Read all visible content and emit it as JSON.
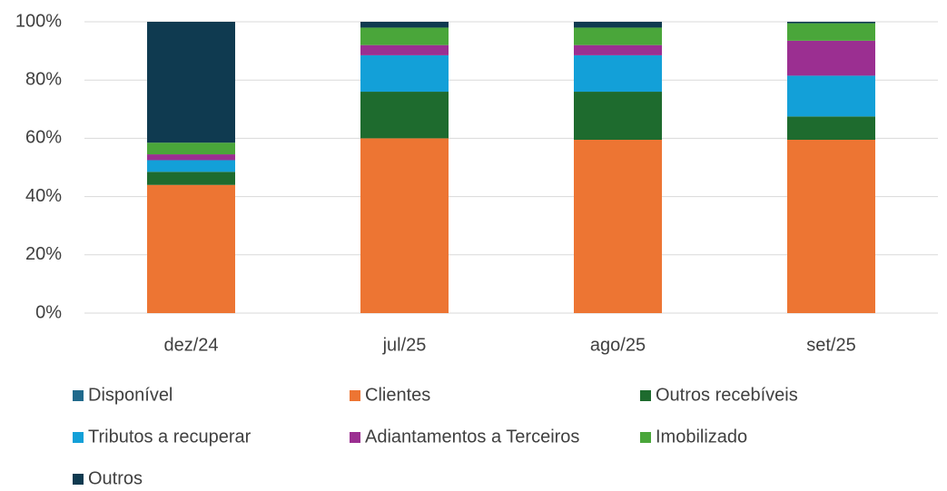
{
  "chart_data": {
    "type": "stacked_bar",
    "categories": [
      "dez/24",
      "jul/25",
      "ago/25",
      "set/25"
    ],
    "series": [
      {
        "name": "Disponível",
        "color": "#206a8c",
        "values": [
          0,
          0,
          0,
          0
        ]
      },
      {
        "name": "Clientes",
        "color": "#ed7533",
        "values": [
          44,
          60,
          59.5,
          59.5
        ]
      },
      {
        "name": "Outros recebíveis",
        "color": "#1e6b2e",
        "values": [
          4.5,
          16,
          16.5,
          8
        ]
      },
      {
        "name": "Tributos a recuperar",
        "color": "#13a0d8",
        "values": [
          4,
          12.5,
          12.5,
          14
        ]
      },
      {
        "name": "Adiantamentos a Terceiros",
        "color": "#9b2f91",
        "values": [
          2,
          3.5,
          3.5,
          12
        ]
      },
      {
        "name": "Imobilizado",
        "color": "#4aa63a",
        "values": [
          4,
          6,
          6,
          6
        ]
      },
      {
        "name": "Outros",
        "color": "#0f3a50",
        "values": [
          41.5,
          2,
          2,
          0.5
        ]
      }
    ],
    "ylim": [
      0,
      100
    ],
    "yticks": [
      {
        "value": 0,
        "label": "0%"
      },
      {
        "value": 20,
        "label": "20%"
      },
      {
        "value": 40,
        "label": "40%"
      },
      {
        "value": 60,
        "label": "60%"
      },
      {
        "value": 80,
        "label": "80%"
      },
      {
        "value": 100,
        "label": "100%"
      }
    ],
    "grid": true
  }
}
